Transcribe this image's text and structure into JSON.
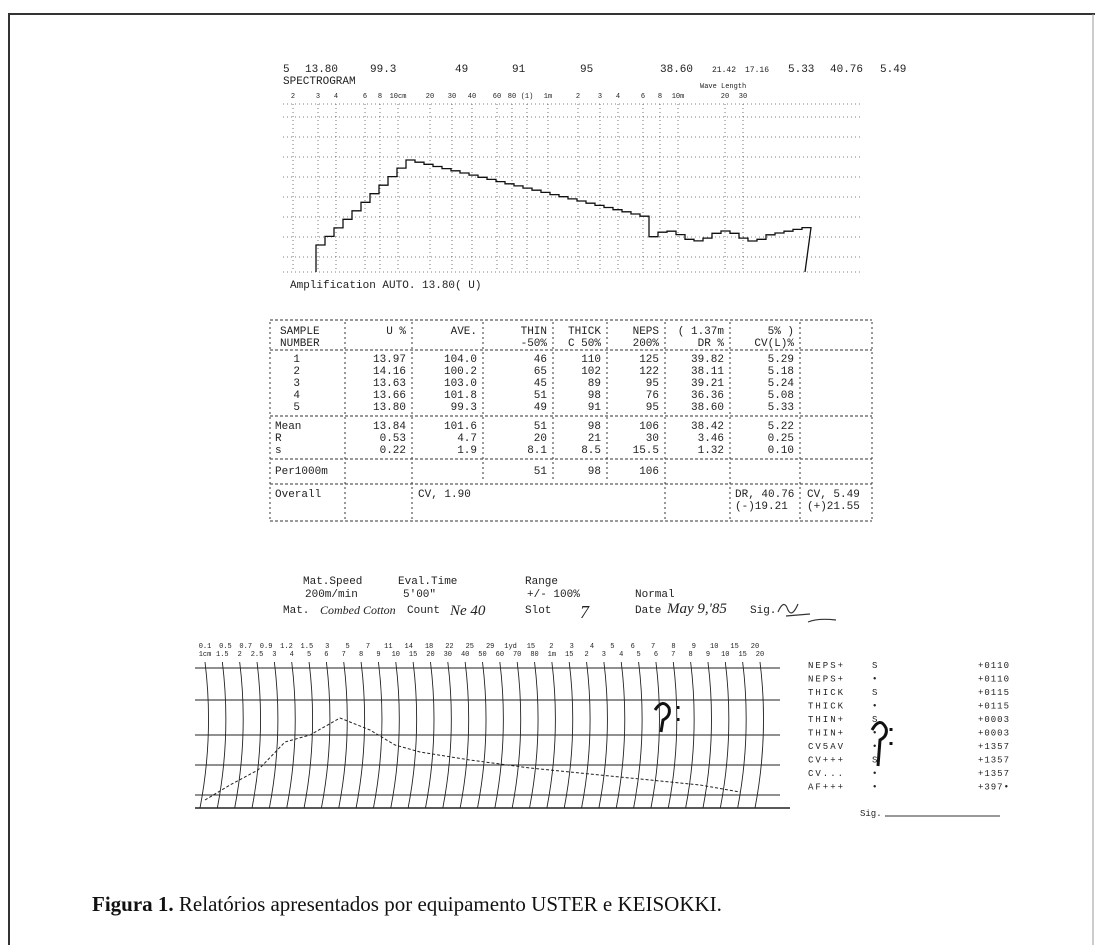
{
  "spectrogram": {
    "summary": [
      "5",
      "13.80",
      "99.3",
      "49",
      "91",
      "95",
      "38.60",
      "21.42",
      "17.16",
      "5.33",
      "40.76",
      "5.49"
    ],
    "title": "SPECTROGRAM",
    "scale": [
      "2",
      "3",
      "4",
      "6",
      "8",
      "10cm",
      "20",
      "30",
      "40",
      "60",
      "80",
      "(1)",
      "1m",
      "2",
      "3",
      "4",
      "6",
      "8",
      "10m",
      "20",
      "30"
    ],
    "scale_title": "Wave Length",
    "amplification": "Amplification  AUTO. 13.80( U)"
  },
  "table": {
    "header": [
      [
        "SAMPLE",
        "NUMBER"
      ],
      [
        "U %"
      ],
      [
        "AVE."
      ],
      [
        "THIN",
        "-50%"
      ],
      [
        "THICK",
        "C 50%"
      ],
      [
        "NEPS",
        "200%"
      ],
      [
        "( 1.37m",
        "DR %"
      ],
      [
        "5% )",
        "CV(L)%"
      ]
    ],
    "samples": [
      [
        "1",
        "13.97",
        "104.0",
        "46",
        "110",
        "125",
        "39.82",
        "5.29"
      ],
      [
        "2",
        "14.16",
        "100.2",
        "65",
        "102",
        "122",
        "38.11",
        "5.18"
      ],
      [
        "3",
        "13.63",
        "103.0",
        "45",
        "89",
        "95",
        "39.21",
        "5.24"
      ],
      [
        "4",
        "13.66",
        "101.8",
        "51",
        "98",
        "76",
        "36.36",
        "5.08"
      ],
      [
        "5",
        "13.80",
        "99.3",
        "49",
        "91",
        "95",
        "38.60",
        "5.33"
      ]
    ],
    "stats": [
      [
        "Mean",
        "13.84",
        "101.6",
        "51",
        "98",
        "106",
        "38.42",
        "5.22"
      ],
      [
        "R",
        "0.53",
        "4.7",
        "20",
        "21",
        "30",
        "3.46",
        "0.25"
      ],
      [
        "s",
        "0.22",
        "1.9",
        "8.1",
        "8.5",
        "15.5",
        "1.32",
        "0.10"
      ]
    ],
    "per1000m": [
      "Per1000m",
      "51",
      "98",
      "106"
    ],
    "overall": {
      "label": "Overall",
      "cv": "CV, 1.90",
      "dr": "DR, 40.76",
      "cvl": "CV, 5.49",
      "minus": "(-)19.21",
      "plus": "(+)21.55"
    }
  },
  "footer": {
    "mat_speed": "Mat.Speed",
    "mat_speed_value": "200m/min",
    "eval_time": "Eval.Time",
    "eval_time_value": "5'00\"",
    "range": "Range",
    "range_value": "+/- 100%",
    "mode": "Normal",
    "mat": "Mat.",
    "material": "Combed Cotton",
    "count": "Count",
    "count_value": "Ne 40",
    "slot": "Slot",
    "slot_value": "7",
    "date": "Date",
    "date_value": "May 9,'85",
    "sig": "Sig."
  },
  "keisokki": {
    "top_labels": [
      "0.1",
      "0.5",
      "0.7",
      "0.9",
      "1.2",
      "1.5",
      "3",
      "5",
      "7",
      "11",
      "14",
      "18",
      "22",
      "25",
      "29",
      "1yd",
      "15",
      "2",
      "3",
      "4",
      "5",
      "6",
      "7",
      "8",
      "9",
      "10",
      "15",
      "20"
    ],
    "bottom_labels": [
      "1cm",
      "1.5",
      "2",
      "2.5",
      "3",
      "4",
      "5",
      "6",
      "7",
      "8",
      "9",
      "10",
      "15",
      "20",
      "30",
      "40",
      "50",
      "60",
      "70",
      "80",
      "1m",
      "15",
      "2",
      "3",
      "4",
      "5",
      "6",
      "7",
      "8",
      "9",
      "10",
      "15",
      "20"
    ],
    "readings": [
      [
        "NEPS+",
        "S",
        "+0110"
      ],
      [
        "NEPS+",
        "•",
        "+0110"
      ],
      [
        "THICK",
        "S",
        "+0115"
      ],
      [
        "THICK",
        "•",
        "+0115"
      ],
      [
        "THIN+",
        "S",
        "+0003"
      ],
      [
        "THIN+",
        "•",
        "+0003"
      ],
      [
        "CV5AV",
        "•",
        "+1357"
      ],
      [
        "CV+++",
        "S",
        "+1357"
      ],
      [
        "CV...",
        "•",
        "+1357"
      ],
      [
        "AF+++",
        "•",
        "+397•"
      ]
    ],
    "sig": "Sig."
  },
  "caption": {
    "label": "Figura 1.",
    "text": " Relatórios apresentados por equipamento USTER e KEISOKKI."
  }
}
